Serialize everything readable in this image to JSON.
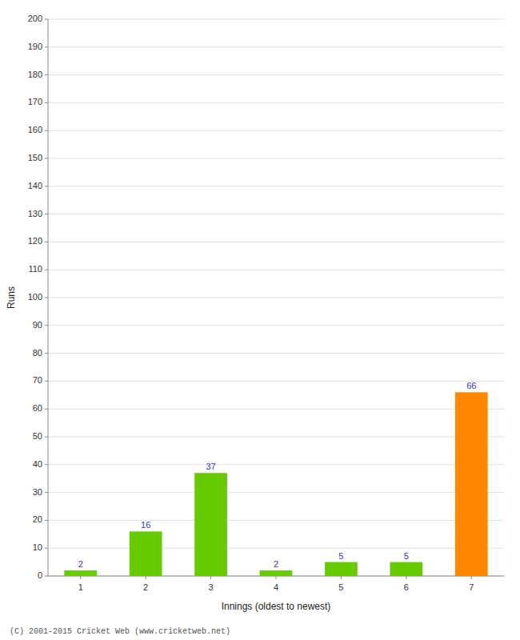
{
  "chart_data": {
    "type": "bar",
    "categories": [
      "1",
      "2",
      "3",
      "4",
      "5",
      "6",
      "7"
    ],
    "values": [
      2,
      16,
      37,
      2,
      5,
      5,
      66
    ],
    "colors": [
      "#66cc00",
      "#66cc00",
      "#66cc00",
      "#66cc00",
      "#66cc00",
      "#66cc00",
      "#ff8800"
    ],
    "x_label": "Innings (oldest to newest)",
    "y_label": "Runs",
    "ylim": [
      0,
      200
    ],
    "yticks": [
      0,
      10,
      20,
      30,
      40,
      50,
      60,
      70,
      80,
      90,
      100,
      110,
      120,
      130,
      140,
      150,
      160,
      170,
      180,
      190,
      200
    ],
    "grid": true,
    "data_labels": true,
    "annotations": [
      "(C) 2001-2015 Cricket Web (www.cricketweb.net)"
    ]
  }
}
